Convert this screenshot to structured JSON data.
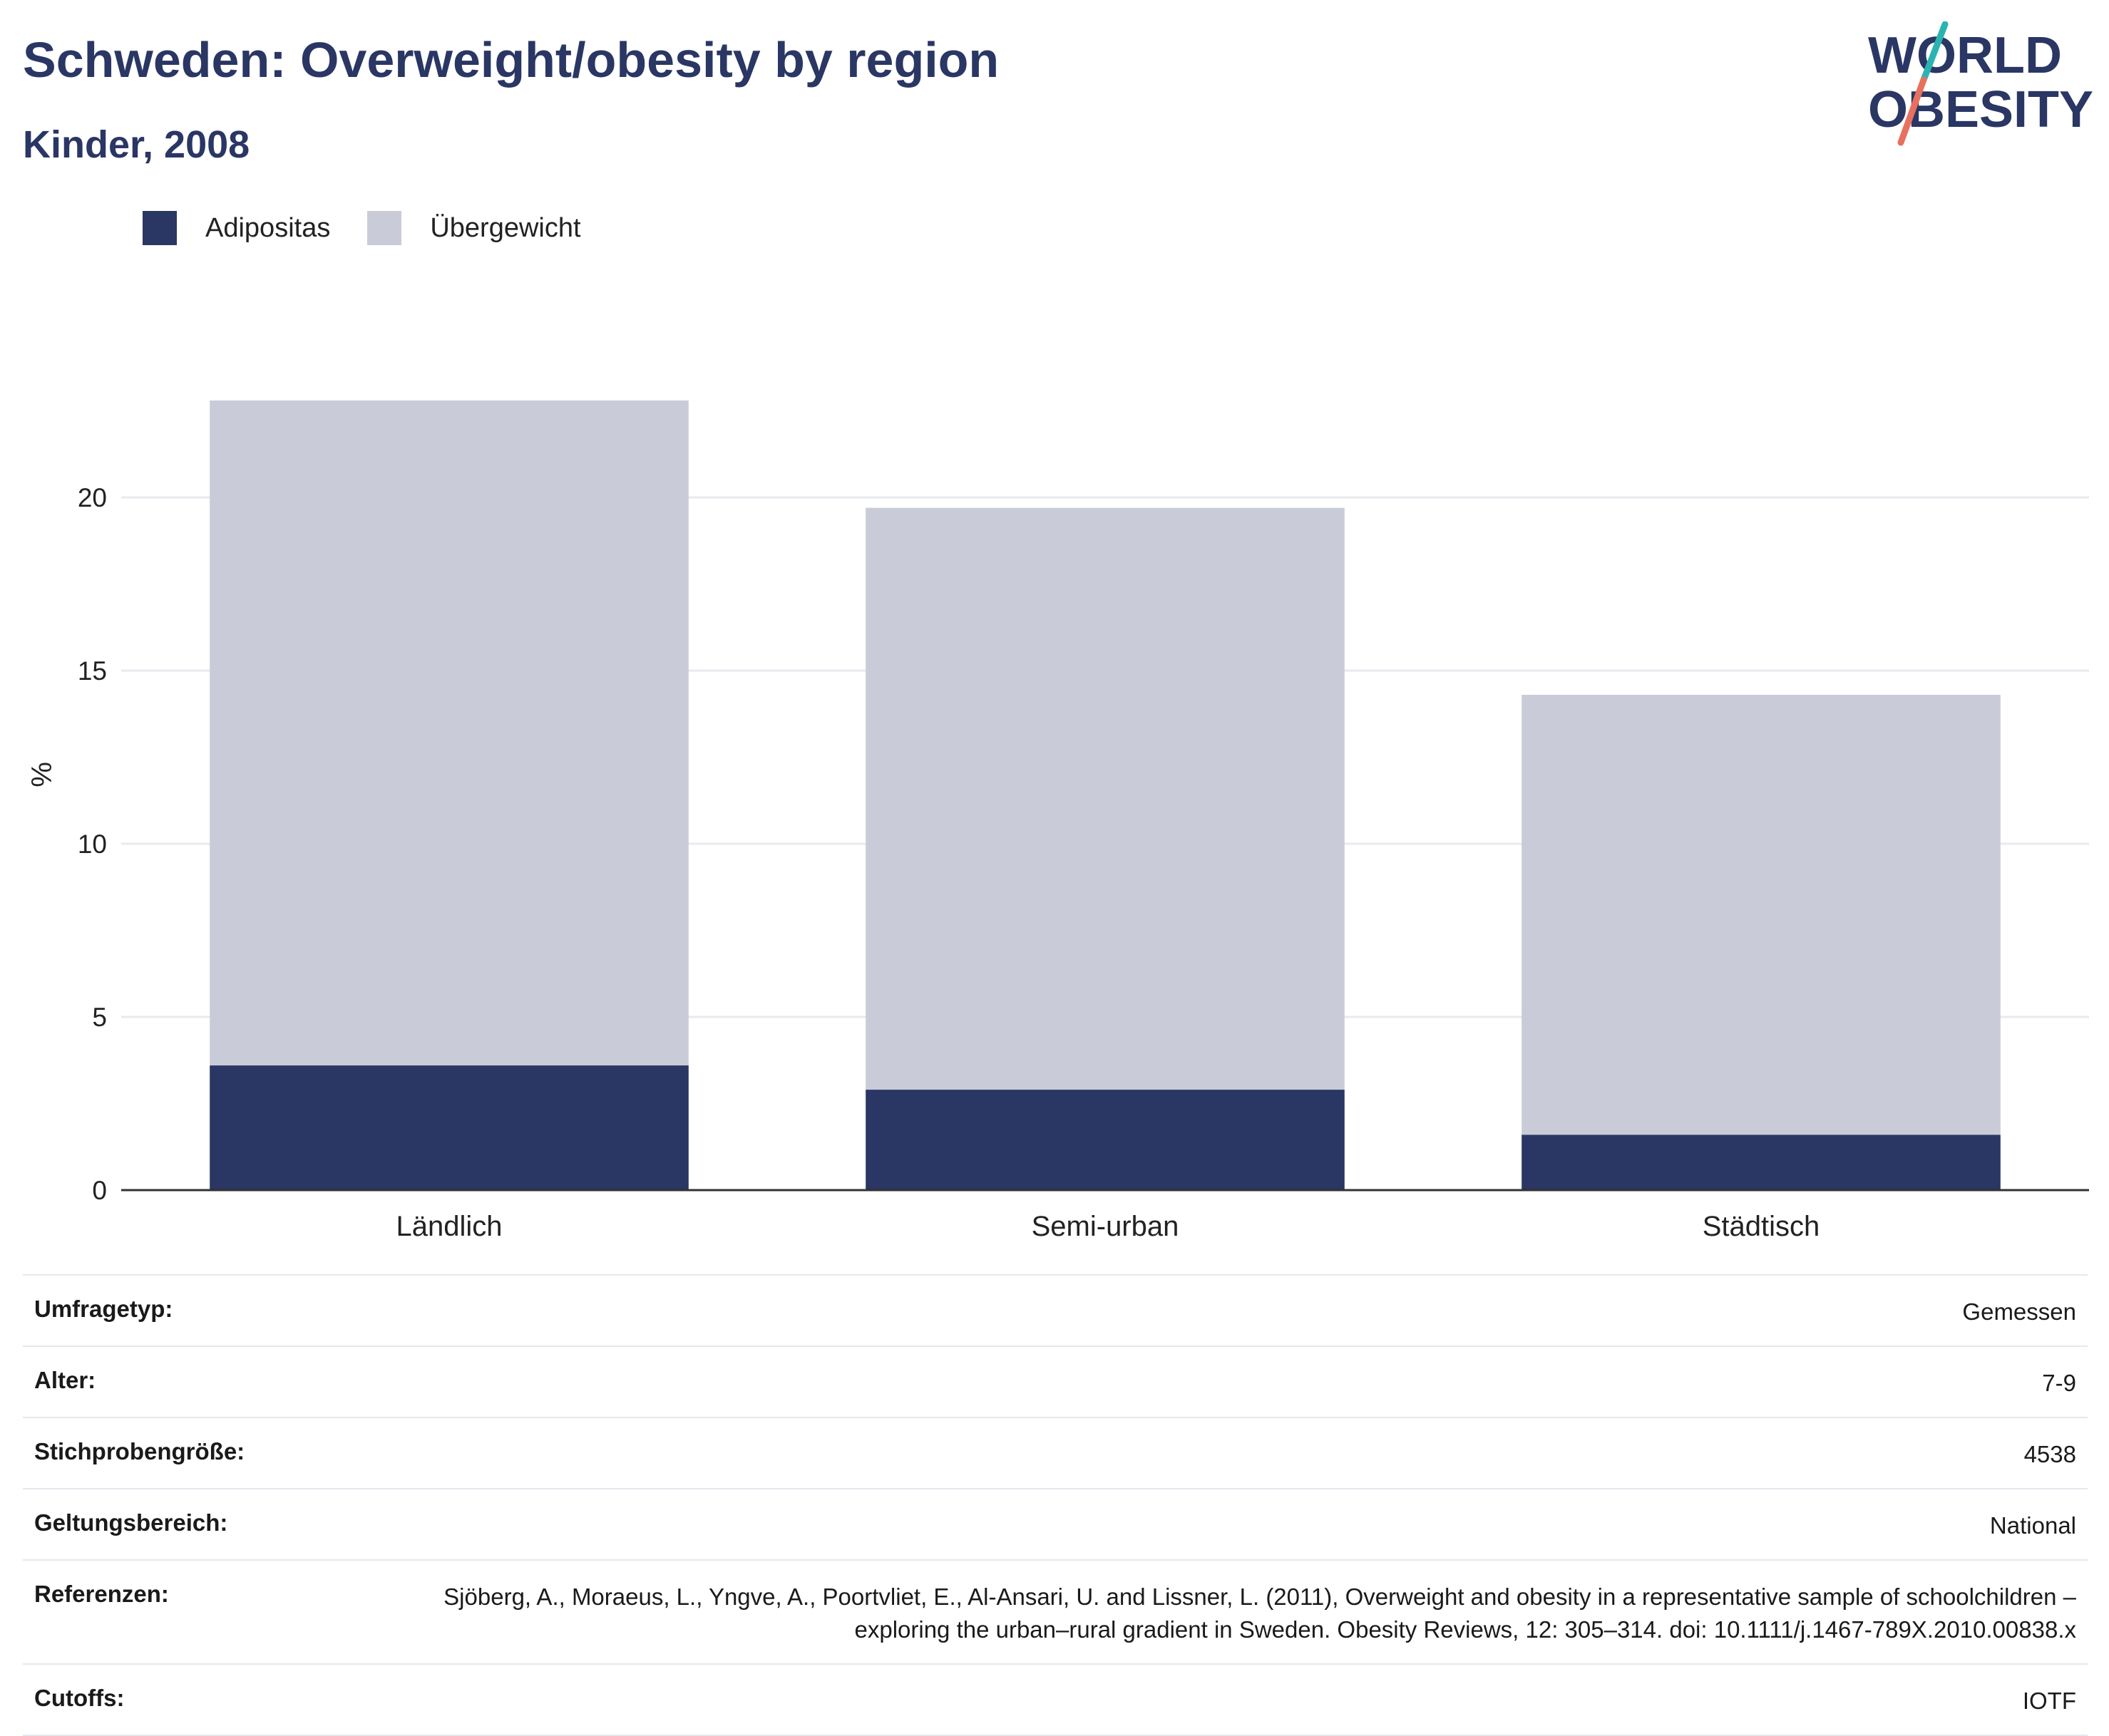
{
  "header": {
    "title": "Schweden: Overweight/obesity by region",
    "subtitle": "Kinder, 2008"
  },
  "logo": {
    "line1": "WORLD",
    "line2": "OBESITY",
    "colors": {
      "text": "#2a3664",
      "accent_top": "#2bb3b1",
      "accent_bottom": "#e8705f"
    }
  },
  "colors": {
    "adipositas": "#2a3664",
    "uebergewicht": "#c9ccd8",
    "grid": "#e9eaef",
    "axis": "#333333"
  },
  "chart_data": {
    "type": "bar",
    "stacked": true,
    "categories": [
      "Ländlich",
      "Semi-urban",
      "Städtisch"
    ],
    "series": [
      {
        "name": "Adipositas",
        "values": [
          3.6,
          2.9,
          1.6
        ]
      },
      {
        "name": "Übergewicht",
        "values": [
          19.2,
          16.8,
          12.7
        ]
      }
    ],
    "ylabel": "%",
    "ylim": [
      0,
      23.5
    ],
    "yticks": [
      0,
      5,
      10,
      15,
      20
    ],
    "grid": true,
    "legend": "top-left"
  },
  "info": [
    {
      "label": "Umfragetyp:",
      "value": "Gemessen"
    },
    {
      "label": "Alter:",
      "value": "7-9"
    },
    {
      "label": "Stichprobengröße:",
      "value": "4538"
    },
    {
      "label": "Geltungsbereich:",
      "value": "National"
    },
    {
      "label": "Referenzen:",
      "value": "Sjöberg, A., Moraeus, L., Yngve, A., Poortvliet, E., Al-Ansari, U. and Lissner, L. (2011), Overweight and obesity in a representative sample of schoolchildren – exploring the urban–rural gradient in Sweden. Obesity Reviews, 12: 305–314. doi: 10.1111/j.1467-789X.2010.00838.x"
    },
    {
      "label": "Cutoffs:",
      "value": "IOTF"
    }
  ]
}
